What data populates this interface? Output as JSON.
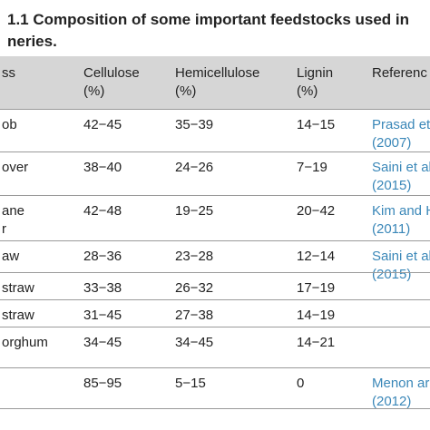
{
  "title": {
    "lines": [
      "1.1  Composition of some important feedstocks used in",
      "neries."
    ]
  },
  "table": {
    "header": [
      [
        "ss"
      ],
      [
        "Cellulose",
        "(%)"
      ],
      [
        "Hemicellulose",
        "(%)"
      ],
      [
        "Lignin",
        "(%)"
      ],
      [
        "Referenc"
      ]
    ],
    "rows": [
      [
        [
          "ob"
        ],
        [
          "42−45"
        ],
        [
          "35−39"
        ],
        [
          "14−15"
        ],
        [
          "Prasad et",
          "(2007)"
        ]
      ],
      [
        [
          "over"
        ],
        [
          "38−40"
        ],
        [
          "24−26"
        ],
        [
          "7−19"
        ],
        [
          "Saini et al",
          "(2015)"
        ]
      ],
      [
        [
          "ane",
          "r"
        ],
        [
          "42−48"
        ],
        [
          "19−25"
        ],
        [
          "20−42"
        ],
        [
          "Kim and H",
          "(2011)"
        ]
      ],
      [
        [
          "aw"
        ],
        [
          "28−36"
        ],
        [
          "23−28"
        ],
        [
          "12−14"
        ],
        [
          "Saini et al",
          "(2015)"
        ]
      ],
      [
        [
          "straw"
        ],
        [
          "33−38"
        ],
        [
          "26−32"
        ],
        [
          "17−19"
        ]
      ],
      [
        [
          "straw"
        ],
        [
          "31−45"
        ],
        [
          "27−38"
        ],
        [
          "14−19"
        ]
      ],
      [
        [
          "orghum"
        ],
        [
          "34−45"
        ],
        [
          "34−45"
        ],
        [
          "14−21"
        ]
      ],
      [
        [],
        [
          "85−95"
        ],
        [
          "5−15"
        ],
        [
          "0"
        ],
        [
          "Menon ar",
          "(2012)"
        ]
      ]
    ]
  }
}
